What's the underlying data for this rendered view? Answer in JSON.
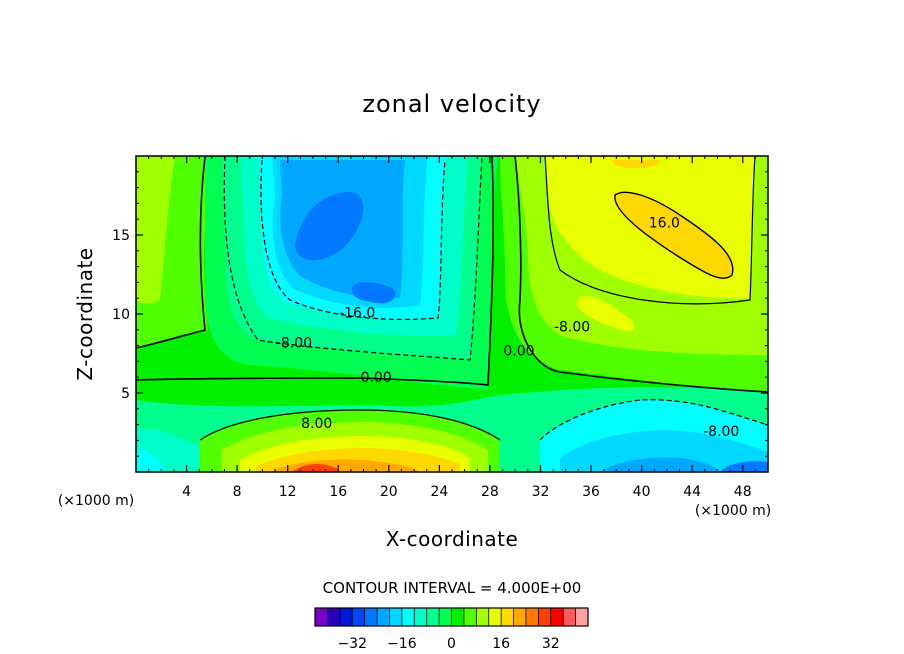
{
  "chart_data": {
    "type": "heatmap",
    "subtype": "filled-contour",
    "title": "zonal velocity",
    "xlabel": "X-coordinate",
    "ylabel": "Z-coordinate",
    "x_unit_label": "(×1000 m)",
    "x_unit_label_right": "(×1000 m)",
    "xlim": [
      0,
      50
    ],
    "ylim": [
      0,
      20
    ],
    "x_ticks": [
      4,
      8,
      12,
      16,
      20,
      24,
      28,
      32,
      36,
      40,
      44,
      48
    ],
    "y_ticks": [
      5,
      10,
      15
    ],
    "contour_interval_text": "CONTOUR INTERVAL = 4.000E+00",
    "contour_interval": 4,
    "levels": [
      -36,
      -32,
      -28,
      -24,
      -20,
      -16,
      -12,
      -8,
      -4,
      0,
      4,
      8,
      12,
      16,
      20,
      24,
      28,
      32,
      36,
      40
    ],
    "colorbar": {
      "ticks": [
        -32,
        -16,
        0,
        16,
        32
      ],
      "tick_labels": [
        "−32",
        "−16",
        "0",
        "16",
        "32"
      ],
      "colors": [
        "#7a00c8",
        "#2c00b4",
        "#0018d8",
        "#0048ff",
        "#0078ff",
        "#00a8ff",
        "#00d8ff",
        "#00ffff",
        "#00ffc8",
        "#00ff8c",
        "#00ff50",
        "#00f000",
        "#50ff00",
        "#a0ff00",
        "#e8ff00",
        "#ffd800",
        "#ffa800",
        "#ff7800",
        "#ff4000",
        "#ff0000",
        "#ff5a5a",
        "#ffa0a0"
      ]
    },
    "contour_labels": [
      {
        "text": "16.0",
        "x": 41.8,
        "z": 15.8
      },
      {
        "text": "-16.0",
        "x": 17.5,
        "z": 10.1
      },
      {
        "text": "-8.00",
        "x": 12.5,
        "z": 8.2
      },
      {
        "text": "0.00",
        "x": 19,
        "z": 6
      },
      {
        "text": "0.00",
        "x": 30.3,
        "z": 7.7
      },
      {
        "text": "-8.00",
        "x": 34.5,
        "z": 9.2
      },
      {
        "text": "8.00",
        "x": 14.3,
        "z": 3.1
      },
      {
        "text": "-8.00",
        "x": 46.3,
        "z": 2.6
      }
    ]
  }
}
